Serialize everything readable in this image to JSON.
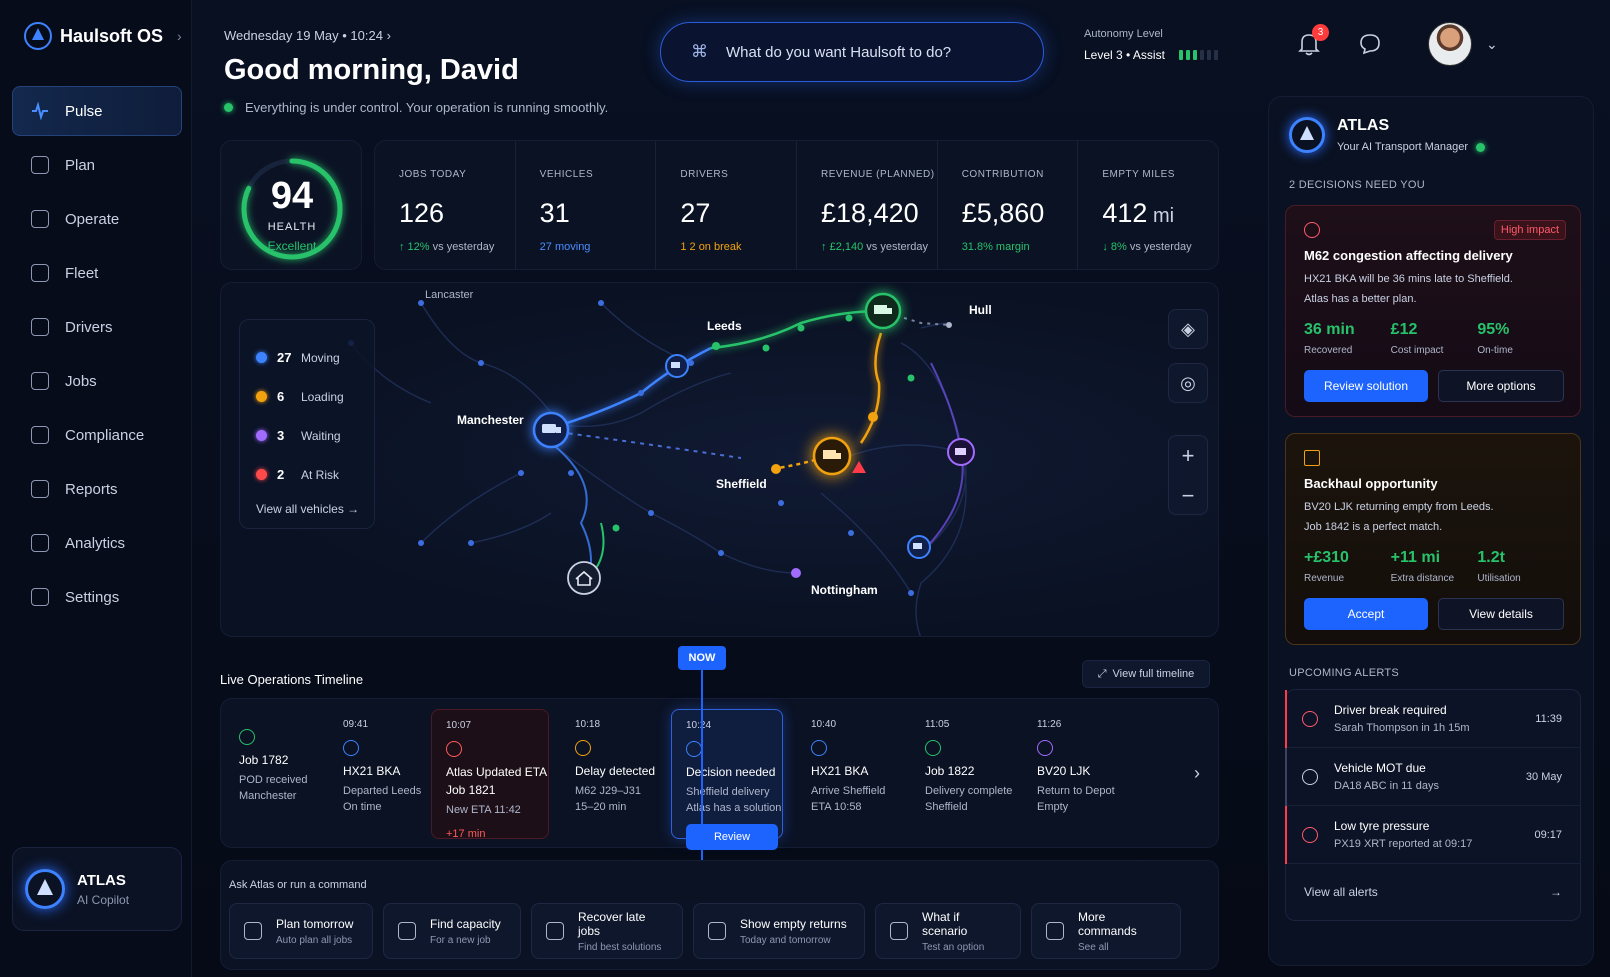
{
  "brand": {
    "name": "Haulsoft OS",
    "chevron": "›"
  },
  "nav": [
    {
      "label": "Pulse",
      "icon": "pulse-icon",
      "active": true
    },
    {
      "label": "Plan",
      "icon": "plan-icon"
    },
    {
      "label": "Operate",
      "icon": "operate-icon"
    },
    {
      "label": "Fleet",
      "icon": "fleet-icon"
    },
    {
      "label": "Drivers",
      "icon": "drivers-icon"
    },
    {
      "label": "Jobs",
      "icon": "jobs-icon"
    },
    {
      "label": "Compliance",
      "icon": "compliance-icon"
    },
    {
      "label": "Reports",
      "icon": "reports-icon"
    },
    {
      "label": "Analytics",
      "icon": "analytics-icon"
    },
    {
      "label": "Settings",
      "icon": "settings-icon"
    }
  ],
  "copilot": {
    "title": "ATLAS",
    "subtitle": "AI Copilot"
  },
  "header": {
    "date": "Wednesday 19 May • 10:24 ›",
    "greeting": "Good morning, David",
    "status": "Everything is under control. Your operation is running smoothly.",
    "command_placeholder": "What do you want Haulsoft to do?",
    "command_icon": "⌘",
    "autonomy_label": "Autonomy Level",
    "autonomy_value": "Level 3 • Assist",
    "autonomy_level": 3,
    "notifications_count": "3"
  },
  "health": {
    "score": "94",
    "label": "HEALTH",
    "status": "Excellent",
    "fraction": 0.94
  },
  "kpis": [
    {
      "label": "JOBS TODAY",
      "value": "126",
      "unit": "",
      "delta": "↑ 12%",
      "delta_rest": " vs yesterday",
      "cls": "up"
    },
    {
      "label": "VEHICLES",
      "value": "31",
      "unit": "",
      "delta": "27 moving",
      "delta_rest": "",
      "cls": "blue"
    },
    {
      "label": "DRIVERS",
      "value": "27",
      "unit": "",
      "delta": "1 2 on break",
      "delta_rest": "",
      "cls": "amber"
    },
    {
      "label": "REVENUE (PLANNED)",
      "value": "£18,420",
      "unit": "",
      "delta": "↑ £2,140",
      "delta_rest": " vs yesterday",
      "cls": "up"
    },
    {
      "label": "CONTRIBUTION",
      "value": "£5,860",
      "unit": "",
      "delta": "31.8% margin",
      "delta_rest": "",
      "cls": "up"
    },
    {
      "label": "EMPTY MILES",
      "value": "412",
      "unit": " mi",
      "delta": "↓ 8%",
      "delta_rest": " vs yesterday",
      "cls": "down"
    }
  ],
  "map": {
    "legend": [
      {
        "count": "27",
        "label": "Moving",
        "color": "#3d82ff"
      },
      {
        "count": "6",
        "label": "Loading",
        "color": "#f2a20f"
      },
      {
        "count": "3",
        "label": "Waiting",
        "color": "#a26bff"
      },
      {
        "count": "2",
        "label": "At Risk",
        "color": "#ff4a4a"
      }
    ],
    "view_all": "View all vehicles →",
    "cities": [
      "Lancaster",
      "Leeds",
      "Hull",
      "Manchester",
      "Sheffield",
      "Nottingham"
    ]
  },
  "timeline": {
    "title": "Live Operations Timeline",
    "view_full": "View full timeline",
    "now": "NOW",
    "events": [
      {
        "time": "",
        "title": "Job 1782",
        "l1": "POD received",
        "l2": "Manchester",
        "color": "#27c26a"
      },
      {
        "time": "09:41",
        "title": "HX21 BKA",
        "l1": "Departed Leeds",
        "l2": "On time",
        "color": "#3d82ff"
      },
      {
        "time": "10:07",
        "title": "Atlas Updated ETA",
        "title2": "Job 1821",
        "l1": "New ETA 11:42",
        "red": "+17 min",
        "color": "#ff5a5a",
        "kind": "alert"
      },
      {
        "time": "10:18",
        "title": "Delay detected",
        "l1": "M62 J29–J31",
        "l2": "15–20 min",
        "color": "#f2a20f"
      },
      {
        "time": "10:24",
        "title": "Decision needed",
        "l1": "Sheffield delivery",
        "l2": "Atlas has a solution",
        "btn": "Review",
        "color": "#3d82ff",
        "kind": "decision"
      },
      {
        "time": "10:40",
        "title": "HX21 BKA",
        "l1": "Arrive Sheffield",
        "l2": "ETA 10:58",
        "color": "#3d82ff"
      },
      {
        "time": "11:05",
        "title": "Job 1822",
        "l1": "Delivery complete",
        "l2": "Sheffield",
        "color": "#27c26a"
      },
      {
        "time": "11:26",
        "title": "BV20 LJK",
        "l1": "Return to Depot",
        "l2": "Empty",
        "color": "#a26bff"
      }
    ]
  },
  "ask": {
    "label": "Ask Atlas or run a command",
    "chips": [
      {
        "title": "Plan tomorrow",
        "sub": "Auto plan all jobs",
        "icon": "calendar-icon"
      },
      {
        "title": "Find capacity",
        "sub": "For a new job",
        "icon": "search-icon"
      },
      {
        "title": "Recover late jobs",
        "sub": "Find best solutions",
        "icon": "bolt-icon"
      },
      {
        "title": "Show empty returns",
        "sub": "Today and tomorrow",
        "icon": "truck-icon"
      },
      {
        "title": "What if scenario",
        "sub": "Test an option",
        "icon": "scenario-icon"
      },
      {
        "title": "More commands",
        "sub": "See all",
        "icon": "grid-icon"
      }
    ]
  },
  "atlas": {
    "title": "ATLAS",
    "subtitle": "Your AI Transport Manager",
    "decisions_label": "2 DECISIONS NEED YOU",
    "cards": [
      {
        "tag": "High impact",
        "title": "M62 congestion affecting delivery",
        "desc1": "HX21 BKA will be 36 mins late to Sheffield.",
        "desc2": "Atlas has a better plan.",
        "metrics": [
          {
            "v": "36 min",
            "l": "Recovered"
          },
          {
            "v": "£12",
            "l": "Cost impact"
          },
          {
            "v": "95%",
            "l": "On-time"
          }
        ],
        "primary": "Review solution",
        "secondary": "More options"
      },
      {
        "tag": "",
        "title": "Backhaul opportunity",
        "desc1": "BV20 LJK returning empty from Leeds.",
        "desc2": "Job 1842 is a perfect match.",
        "metrics": [
          {
            "v": "+£310",
            "l": "Revenue"
          },
          {
            "v": "+11 mi",
            "l": "Extra distance"
          },
          {
            "v": "1.2t",
            "l": "Utilisation"
          }
        ],
        "primary": "Accept",
        "secondary": "View details"
      }
    ],
    "alerts_label": "UPCOMING ALERTS",
    "alerts": [
      {
        "title": "Driver break required",
        "sub": "Sarah Thompson in 1h 15m",
        "time": "11:39",
        "kind": "red"
      },
      {
        "title": "Vehicle MOT due",
        "sub": "DA18 ABC in 11 days",
        "time": "30 May",
        "kind": "mid"
      },
      {
        "title": "Low tyre pressure",
        "sub": "PX19 XRT reported at 09:17",
        "time": "09:17",
        "kind": "red"
      }
    ],
    "view_all_alerts": "View all alerts"
  }
}
